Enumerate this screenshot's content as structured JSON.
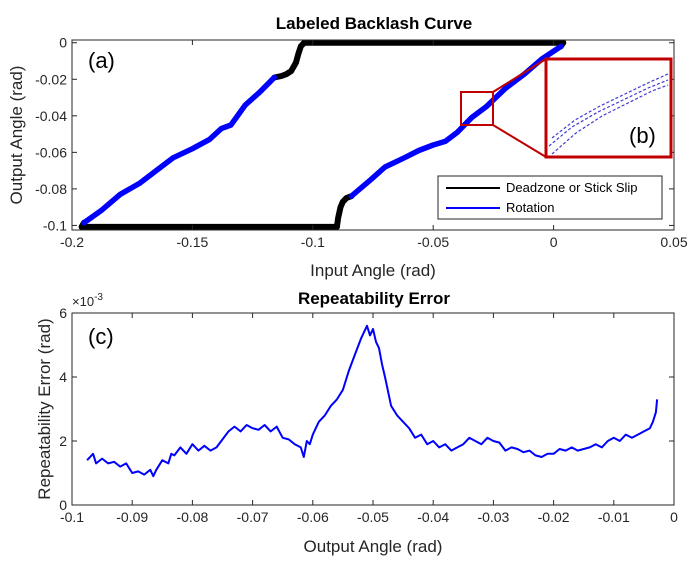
{
  "chart_data": [
    {
      "type": "line",
      "title": "Labeled Backlash Curve",
      "xlabel": "Input Angle (rad)",
      "ylabel": "Output Angle (rad)",
      "xlim": [
        -0.2,
        0.05
      ],
      "ylim": [
        -0.1025,
        0.0015
      ],
      "xticks": [
        "-0.2",
        "-0.15",
        "-0.1",
        "-0.05",
        "0",
        "0.05"
      ],
      "yticks": [
        "0",
        "-0.02",
        "-0.04",
        "-0.06",
        "-0.08",
        "-0.1"
      ],
      "legend_position": "bottom-right",
      "grid": false,
      "panel_labels": [
        "(a)",
        "(b)"
      ],
      "series": [
        {
          "name": "Deadzone or Stick Slip",
          "color": "#000000",
          "segments": [
            {
              "x": [
                -0.196,
                -0.195
              ],
              "y": [
                -0.1008,
                -0.0985
              ]
            },
            {
              "x": [
                -0.195,
                -0.09
              ],
              "y": [
                -0.1008,
                -0.1008
              ]
            },
            {
              "x": [
                -0.09,
                -0.0895,
                -0.0885,
                -0.0875,
                -0.086,
                -0.084
              ],
              "y": [
                -0.1008,
                -0.096,
                -0.09,
                -0.087,
                -0.085,
                -0.084
              ]
            },
            {
              "x": [
                -0.116,
                -0.113,
                -0.111,
                -0.109,
                -0.107,
                -0.106,
                -0.105,
                -0.104,
                -0.1035
              ],
              "y": [
                -0.019,
                -0.0182,
                -0.0172,
                -0.0155,
                -0.011,
                -0.006,
                -0.002,
                -0.0005,
                0.0
              ]
            },
            {
              "x": [
                -0.1035,
                0.004
              ],
              "y": [
                0.0,
                0.0
              ]
            },
            {
              "x": [
                0.003,
                0.004
              ],
              "y": [
                -0.002,
                0.0
              ]
            }
          ]
        },
        {
          "name": "Rotation",
          "color": "#0000ff",
          "segments": [
            {
              "x": [
                -0.195,
                -0.188,
                -0.18,
                -0.172,
                -0.165,
                -0.158,
                -0.15,
                -0.143,
                -0.138,
                -0.134,
                -0.128,
                -0.122,
                -0.116
              ],
              "y": [
                -0.0985,
                -0.092,
                -0.083,
                -0.077,
                -0.07,
                -0.063,
                -0.058,
                -0.053,
                -0.047,
                -0.045,
                -0.034,
                -0.027,
                -0.019
              ]
            },
            {
              "x": [
                -0.084,
                -0.076,
                -0.07,
                -0.062,
                -0.056,
                -0.05,
                -0.045,
                -0.04,
                -0.034,
                -0.028,
                -0.02,
                -0.012,
                -0.005,
                0.003
              ],
              "y": [
                -0.084,
                -0.075,
                -0.068,
                -0.063,
                -0.059,
                -0.056,
                -0.054,
                -0.049,
                -0.041,
                -0.035,
                -0.025,
                -0.017,
                -0.009,
                -0.002
              ]
            }
          ]
        }
      ]
    },
    {
      "type": "line",
      "title": "Repeatability Error",
      "xlabel": "Output Angle (rad)",
      "ylabel": "Repeatability Error (rad)",
      "xlim": [
        -0.1,
        0
      ],
      "ylim": [
        0,
        6
      ],
      "xticks": [
        "-0.1",
        "-0.09",
        "-0.08",
        "-0.07",
        "-0.06",
        "-0.05",
        "-0.04",
        "-0.03",
        "-0.02",
        "-0.01",
        "0"
      ],
      "yticks": [
        "0",
        "2",
        "4",
        "6"
      ],
      "y_multiplier": "×10",
      "y_multiplier_exponent": "-3",
      "grid": false,
      "panel_labels": [
        "(c)"
      ],
      "series": [
        {
          "color": "#0000ff",
          "x": [
            -0.0975,
            -0.0965,
            -0.096,
            -0.095,
            -0.094,
            -0.093,
            -0.092,
            -0.091,
            -0.09,
            -0.089,
            -0.088,
            -0.087,
            -0.0865,
            -0.086,
            -0.085,
            -0.084,
            -0.0835,
            -0.083,
            -0.082,
            -0.081,
            -0.08,
            -0.079,
            -0.078,
            -0.077,
            -0.076,
            -0.075,
            -0.074,
            -0.073,
            -0.072,
            -0.071,
            -0.07,
            -0.069,
            -0.068,
            -0.067,
            -0.066,
            -0.065,
            -0.064,
            -0.063,
            -0.062,
            -0.0615,
            -0.061,
            -0.0605,
            -0.06,
            -0.059,
            -0.058,
            -0.057,
            -0.056,
            -0.055,
            -0.054,
            -0.053,
            -0.052,
            -0.051,
            -0.0505,
            -0.05,
            -0.0495,
            -0.049,
            -0.0485,
            -0.048,
            -0.047,
            -0.046,
            -0.045,
            -0.044,
            -0.043,
            -0.042,
            -0.041,
            -0.04,
            -0.039,
            -0.038,
            -0.037,
            -0.036,
            -0.035,
            -0.034,
            -0.033,
            -0.032,
            -0.031,
            -0.03,
            -0.029,
            -0.028,
            -0.027,
            -0.026,
            -0.025,
            -0.024,
            -0.023,
            -0.022,
            -0.021,
            -0.02,
            -0.019,
            -0.018,
            -0.017,
            -0.016,
            -0.015,
            -0.014,
            -0.013,
            -0.012,
            -0.011,
            -0.01,
            -0.009,
            -0.008,
            -0.007,
            -0.006,
            -0.005,
            -0.004,
            -0.0035,
            -0.003,
            -0.0028
          ],
          "y": [
            1.4,
            1.6,
            1.3,
            1.45,
            1.3,
            1.35,
            1.2,
            1.3,
            1.0,
            1.05,
            0.95,
            1.1,
            0.9,
            1.1,
            1.4,
            1.3,
            1.6,
            1.55,
            1.8,
            1.6,
            1.9,
            1.7,
            1.85,
            1.7,
            1.8,
            2.05,
            2.3,
            2.45,
            2.3,
            2.5,
            2.4,
            2.35,
            2.5,
            2.3,
            2.45,
            2.1,
            2.05,
            1.9,
            1.8,
            1.5,
            2.0,
            1.9,
            2.2,
            2.6,
            2.8,
            3.1,
            3.3,
            3.6,
            4.2,
            4.7,
            5.2,
            5.6,
            5.3,
            5.5,
            5.1,
            4.9,
            4.4,
            4.0,
            3.1,
            2.8,
            2.6,
            2.4,
            2.1,
            2.2,
            1.9,
            2.0,
            1.8,
            1.9,
            1.7,
            1.8,
            1.9,
            2.1,
            2.0,
            1.9,
            2.1,
            2.0,
            1.95,
            1.7,
            1.8,
            1.75,
            1.65,
            1.7,
            1.55,
            1.5,
            1.6,
            1.6,
            1.75,
            1.7,
            1.8,
            1.7,
            1.75,
            1.8,
            1.9,
            1.8,
            2.0,
            2.1,
            2.0,
            2.2,
            2.1,
            2.2,
            2.3,
            2.4,
            2.6,
            2.9,
            3.3
          ]
        }
      ]
    }
  ]
}
